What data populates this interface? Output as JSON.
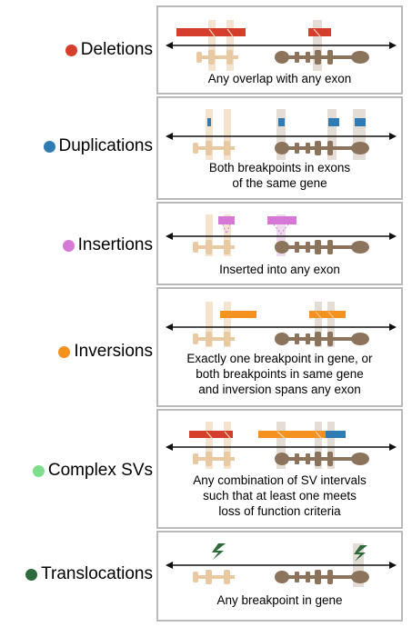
{
  "colors": {
    "deletion": "#d53e2c",
    "duplication": "#2f7bb4",
    "insertion": "#d679d6",
    "inversion": "#f39220",
    "complex": "#7ddf8c",
    "translocation": "#2e6b3b",
    "gene_light": "#e8c9a2",
    "gene_dark": "#8c735c",
    "panel_border": "#b9b9b9"
  },
  "rows": [
    {
      "label": "Deletions",
      "caption": "Any overlap with any exon"
    },
    {
      "label": "Duplications",
      "caption": "Both breakpoints in exons of the same gene",
      "caption_lines": [
        "Both breakpoints in exons",
        "of the same gene"
      ]
    },
    {
      "label": "Insertions",
      "caption": "Inserted into any exon"
    },
    {
      "label": "Inversions",
      "caption_lines": [
        "Exactly one breakpoint in gene, or",
        "both breakpoints in same gene",
        "and inversion spans any exon"
      ]
    },
    {
      "label": "Complex SVs",
      "caption_lines": [
        "Any combination of SV intervals",
        "such that at least one meets",
        "loss of function criteria"
      ]
    },
    {
      "label": "Translocations",
      "caption": "Any breakpoint in gene"
    }
  ]
}
